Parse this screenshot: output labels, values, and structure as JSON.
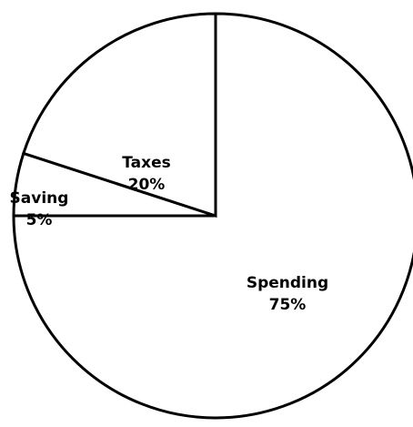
{
  "chart_data": {
    "type": "pie",
    "categories": [
      "Spending",
      "Saving",
      "Taxes"
    ],
    "values": [
      75,
      5,
      20
    ],
    "value_labels": [
      "75%",
      "5%",
      "20%"
    ],
    "colors": [
      "#ffffff",
      "#ffffff",
      "#ffffff"
    ],
    "start_angle": 0,
    "direction": "clockwise"
  }
}
